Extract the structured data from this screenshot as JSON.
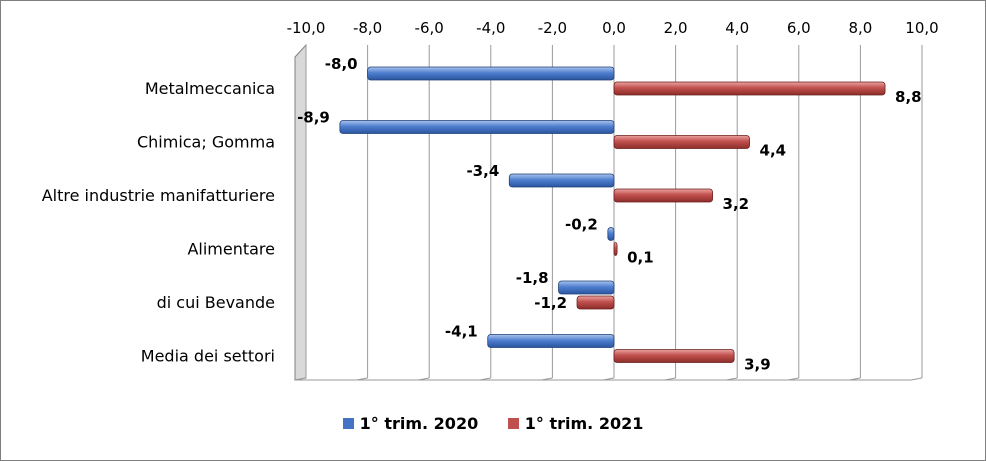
{
  "chart_data": {
    "type": "bar",
    "orientation": "horizontal",
    "categories": [
      "Metalmeccanica",
      "Chimica; Gomma",
      "Altre industrie manifatturiere",
      "Alimentare",
      "di cui Bevande",
      "Media dei settori"
    ],
    "series": [
      {
        "name": "1° trim. 2020",
        "values": [
          -8.0,
          -8.9,
          -3.4,
          -0.2,
          -1.8,
          -4.1
        ],
        "labels": [
          "-8,0",
          "-8,9",
          "-3,4",
          "-0,2",
          "-1,8",
          "-4,1"
        ],
        "color": "#4472c4"
      },
      {
        "name": "1° trim. 2021",
        "values": [
          8.8,
          4.4,
          3.2,
          0.1,
          -1.2,
          3.9
        ],
        "labels": [
          "8,8",
          "4,4",
          "3,2",
          "0,1",
          "-1,2",
          "3,9"
        ],
        "color": "#c0504d"
      }
    ],
    "xlim": [
      -10,
      10
    ],
    "ticks": [
      -10,
      -8,
      -6,
      -4,
      -2,
      0,
      2,
      4,
      6,
      8,
      10
    ],
    "tick_labels": [
      "-10,0",
      "-8,0",
      "-6,0",
      "-4,0",
      "-2,0",
      "0,0",
      "2,0",
      "4,0",
      "6,0",
      "8,0",
      "10,0"
    ],
    "axis_position": "top",
    "grid": true,
    "legend_position": "bottom",
    "title": "",
    "xlabel": "",
    "ylabel": ""
  }
}
